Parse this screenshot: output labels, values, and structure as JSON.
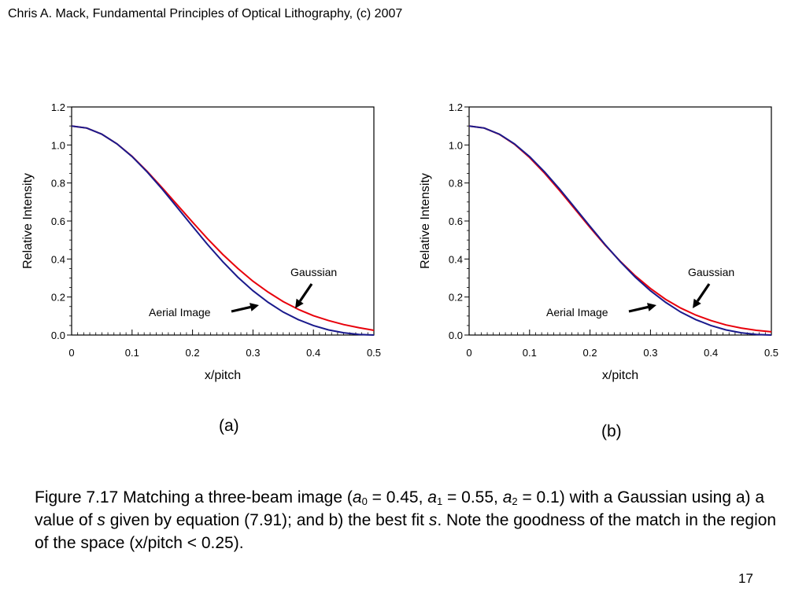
{
  "header": {
    "text": "Chris A. Mack, Fundamental Principles of Optical Lithography, (c) 2007"
  },
  "colors": {
    "gaussian": "#e8000b",
    "aerial": "#1a1a8c",
    "axis": "#000000"
  },
  "chart_data": [
    {
      "type": "line",
      "panel_label": "(a)",
      "xlabel": "x/pitch",
      "ylabel": "Relative Intensity",
      "xlim": [
        0,
        0.5
      ],
      "ylim": [
        0,
        1.2
      ],
      "xticks": [
        0,
        0.1,
        0.2,
        0.3,
        0.4,
        0.5
      ],
      "xtick_labels": [
        "0",
        "0.1",
        "0.2",
        "0.3",
        "0.4",
        "0.5"
      ],
      "yticks": [
        0,
        0.2,
        0.4,
        0.6,
        0.8,
        1.0,
        1.2
      ],
      "ytick_labels": [
        "0.0",
        "0.2",
        "0.4",
        "0.6",
        "0.8",
        "1.0",
        "1.2"
      ],
      "x": [
        0,
        0.025,
        0.05,
        0.075,
        0.1,
        0.125,
        0.15,
        0.175,
        0.2,
        0.225,
        0.25,
        0.275,
        0.3,
        0.325,
        0.35,
        0.375,
        0.4,
        0.425,
        0.45,
        0.475,
        0.5
      ],
      "series": [
        {
          "name": "Gaussian",
          "values": [
            1.1,
            1.089,
            1.057,
            1.006,
            0.94,
            0.861,
            0.774,
            0.684,
            0.594,
            0.506,
            0.424,
            0.35,
            0.283,
            0.226,
            0.176,
            0.135,
            0.102,
            0.076,
            0.055,
            0.039,
            0.025
          ]
        },
        {
          "name": "Aerial Image",
          "values": [
            1.1,
            1.089,
            1.057,
            1.006,
            0.939,
            0.858,
            0.767,
            0.67,
            0.572,
            0.476,
            0.386,
            0.304,
            0.233,
            0.172,
            0.121,
            0.081,
            0.05,
            0.027,
            0.012,
            0.003,
            0.0
          ]
        }
      ],
      "annotations": [
        {
          "text": "Gaussian"
        },
        {
          "text": "Aerial Image"
        }
      ]
    },
    {
      "type": "line",
      "panel_label": "(b)",
      "xlabel": "x/pitch",
      "ylabel": "Relative Intensity",
      "xlim": [
        0,
        0.5
      ],
      "ylim": [
        0,
        1.2
      ],
      "xticks": [
        0,
        0.1,
        0.2,
        0.3,
        0.4,
        0.5
      ],
      "xtick_labels": [
        "0",
        "0.1",
        "0.2",
        "0.3",
        "0.4",
        "0.5"
      ],
      "yticks": [
        0,
        0.2,
        0.4,
        0.6,
        0.8,
        1.0,
        1.2
      ],
      "ytick_labels": [
        "0.0",
        "0.2",
        "0.4",
        "0.6",
        "0.8",
        "1.0",
        "1.2"
      ],
      "x": [
        0,
        0.025,
        0.05,
        0.075,
        0.1,
        0.125,
        0.15,
        0.175,
        0.2,
        0.225,
        0.25,
        0.275,
        0.3,
        0.325,
        0.35,
        0.375,
        0.4,
        0.425,
        0.45,
        0.475,
        0.5
      ],
      "series": [
        {
          "name": "Gaussian",
          "values": [
            1.1,
            1.089,
            1.056,
            1.004,
            0.934,
            0.851,
            0.759,
            0.663,
            0.566,
            0.473,
            0.388,
            0.311,
            0.245,
            0.188,
            0.142,
            0.105,
            0.076,
            0.053,
            0.037,
            0.025,
            0.017
          ]
        },
        {
          "name": "Aerial Image",
          "values": [
            1.1,
            1.089,
            1.057,
            1.006,
            0.939,
            0.858,
            0.767,
            0.67,
            0.572,
            0.476,
            0.386,
            0.304,
            0.233,
            0.172,
            0.121,
            0.081,
            0.05,
            0.027,
            0.012,
            0.003,
            0.0
          ]
        }
      ],
      "annotations": [
        {
          "text": "Gaussian"
        },
        {
          "text": "Aerial Image"
        }
      ]
    }
  ],
  "caption": {
    "prefix": "Figure 7.17  Matching a three-beam image (",
    "a0_var": "a",
    "a0_sub": "0",
    "a0_val": " = 0.45, ",
    "a1_var": "a",
    "a1_sub": "1",
    "a1_val": " = 0.55, ",
    "a2_var": "a",
    "a2_sub": "2",
    "a2_val": " = 0.1) with a Gaussian using a) a value of ",
    "s_var": "s",
    "middle": " given by equation (7.91); and b) the best fit ",
    "s_var2": "s",
    "suffix": ". Note the goodness of the match in the region of the space (x/pitch < 0.25)."
  },
  "page_number": "17"
}
